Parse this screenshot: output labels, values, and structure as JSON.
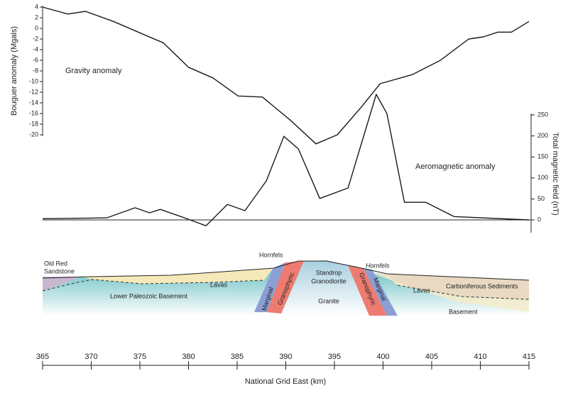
{
  "chart_data": {
    "type": "line",
    "xlabel": "National Grid East (km)",
    "ylabel": "Bouguer anomaly (Mgals)",
    "y2label": "Total magnetic field (nT)",
    "xlim": [
      365,
      415
    ],
    "xticks": [
      365,
      370,
      375,
      380,
      385,
      390,
      395,
      400,
      405,
      410,
      415
    ],
    "ylim": [
      -20,
      4
    ],
    "yticks": [
      4,
      2,
      0,
      -2,
      -4,
      -6,
      -8,
      -10,
      -12,
      -14,
      -16,
      -18,
      -20
    ],
    "y2lim": [
      -30,
      250
    ],
    "y2ticks": [
      0,
      50,
      100,
      150,
      200,
      250
    ],
    "series": [
      {
        "name": "Gravity anomaly",
        "color": "#1a1a1a",
        "x": [
          365,
          367.6,
          369.4,
          372.3,
          375.6,
          377.4,
          380,
          382.5,
          385.1,
          387.6,
          390.5,
          393.1,
          395.3,
          397.8,
          399.7,
          403,
          405.9,
          408.8,
          410.3,
          411.8,
          413.2,
          415
        ],
        "values": [
          4,
          2.7,
          3.2,
          1.3,
          -1.3,
          -2.7,
          -7.3,
          -9.3,
          -12.7,
          -12.9,
          -17.3,
          -21.7,
          -20,
          -14.7,
          -10.4,
          -8.7,
          -6,
          -2,
          -1.6,
          -0.7,
          -0.7,
          1.3
        ]
      },
      {
        "name": "Aeromagnetic anomaly",
        "color": "#1a1a1a",
        "axis": "y2",
        "x": [
          365,
          371.6,
          374.5,
          376,
          377.1,
          379.6,
          381.8,
          384,
          385.8,
          388,
          389.8,
          391.3,
          393.5,
          396.4,
          399.3,
          400.4,
          402.2,
          404.4,
          407.3,
          415
        ],
        "values": [
          3,
          5,
          29,
          17,
          25,
          5,
          -14,
          37,
          22,
          93,
          199,
          169,
          51,
          76,
          299,
          253,
          42,
          42,
          8,
          0
        ]
      }
    ]
  },
  "cross_section": {
    "labels": [
      "Old Red",
      "Sandstone",
      "Hornfels",
      "Lavas",
      "Lower Paleozoic Basement",
      "Marginal",
      "Granophyric",
      "Standrop",
      "Granodiorite",
      "Granite",
      "Granophyric",
      "Marginal",
      "Hornfels",
      "Lavas",
      "Carboniferous Sediments",
      "Basement"
    ]
  }
}
